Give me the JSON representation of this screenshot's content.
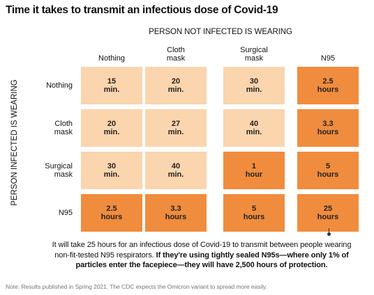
{
  "title": "Time it takes to transmit an infectious dose of Covid-19",
  "chart_data": {
    "type": "table",
    "title": "Time it takes to transmit an infectious dose of Covid-19",
    "col_group_label": "PERSON NOT INFECTED IS WEARING",
    "row_group_label": "PERSON INFECTED IS WEARING",
    "columns": [
      "Nothing",
      "Cloth\nmask",
      "Surgical\nmask",
      "N95"
    ],
    "rows": [
      "Nothing",
      "Cloth\nmask",
      "Surgical\nmask",
      "N95"
    ],
    "cells": [
      [
        "15\nmin.",
        "20\nmin.",
        "30\nmin.",
        "2.5\nhours"
      ],
      [
        "20\nmin.",
        "27\nmin.",
        "40\nmin.",
        "3.3\nhours"
      ],
      [
        "30\nmin.",
        "40\nmin.",
        "1\nhour",
        "5\nhours"
      ],
      [
        "2.5\nhours",
        "3.3\nhours",
        "5\nhours",
        "25\nhours"
      ]
    ],
    "values_hours": [
      [
        0.25,
        0.333,
        0.5,
        2.5
      ],
      [
        0.333,
        0.45,
        0.667,
        3.3
      ],
      [
        0.5,
        0.667,
        1,
        5
      ],
      [
        2.5,
        3.3,
        5,
        25
      ]
    ],
    "highlight": [
      [
        false,
        false,
        false,
        true
      ],
      [
        false,
        false,
        false,
        true
      ],
      [
        false,
        false,
        true,
        true
      ],
      [
        true,
        true,
        true,
        true
      ]
    ]
  },
  "colors": {
    "light_cell": "#fad5ad",
    "dark_cell": "#f08c3d"
  },
  "callout": {
    "line1": "It will take 25 hours for an infectious dose of Covid-19 to transmit between people wearing",
    "line2_plain": "non-fit-tested N95 respirators. ",
    "line2_bold": "If they're using tightly sealed N95s—where only 1% of",
    "line3_bold": "particles enter the facepiece—they will have 2,500 hours of protection."
  },
  "note": "Note: Results published in Spring 2021. The CDC expects the Omicron variant to spread more easily."
}
